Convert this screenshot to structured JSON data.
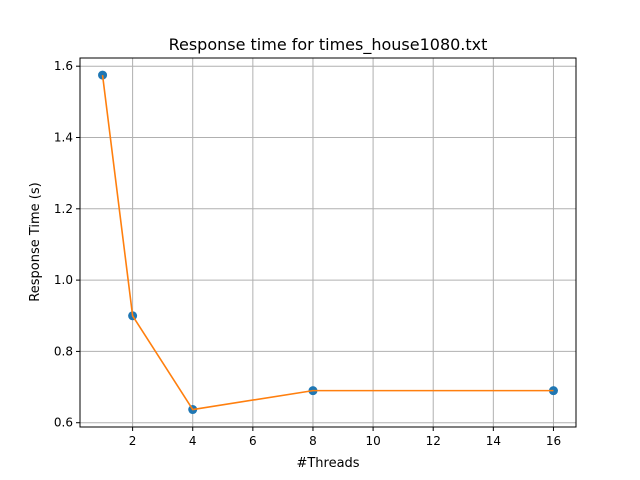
{
  "chart_data": {
    "type": "line",
    "title": "Response time for times_house1080.txt",
    "xlabel": "#Threads",
    "ylabel": "Response Time (s)",
    "x": [
      1,
      2,
      4,
      8,
      16
    ],
    "series": [
      {
        "values": [
          1.575,
          0.9,
          0.637,
          0.69,
          0.69
        ]
      }
    ],
    "xlim": [
      0.25,
      16.75
    ],
    "ylim": [
      0.588,
      1.623
    ],
    "xticks": [
      2,
      4,
      6,
      8,
      10,
      12,
      14,
      16
    ],
    "yticks": [
      0.6,
      0.8,
      1.0,
      1.2,
      1.4,
      1.6
    ],
    "ytick_labels": [
      "0.6",
      "0.8",
      "1.0",
      "1.2",
      "1.4",
      "1.6"
    ],
    "grid": true,
    "colors": {
      "line": "#ff7f0e",
      "markers": "#1f77b4"
    }
  }
}
